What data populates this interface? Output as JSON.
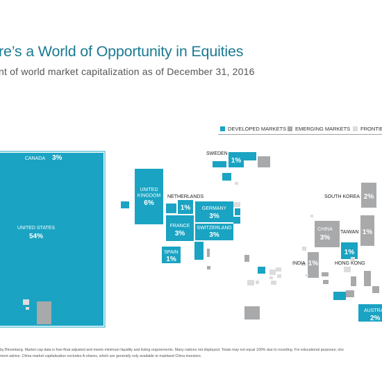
{
  "header": {
    "title": "re’s a World of Opportunity in Equities",
    "subtitle": "nt of world market capitalization as of December 31, 2016"
  },
  "legend": [
    {
      "label": "DEVELOPED MARKETS",
      "color": "#1aa3c2"
    },
    {
      "label": "EMERGING MARKETS",
      "color": "#a8a9ab"
    },
    {
      "label": "FRONTIER",
      "color": "#dcdcdd"
    }
  ],
  "chart_data": {
    "type": "treemap-map",
    "unit": "% of world market capitalization",
    "as_of": "December 31, 2016",
    "countries": [
      {
        "name": "CANADA",
        "value": 3,
        "label": "3%",
        "group": "developed"
      },
      {
        "name": "UNITED STATES",
        "value": 54,
        "label": "54%",
        "group": "developed"
      },
      {
        "name": "UNITED KINGDOM",
        "value": 6,
        "label": "6%",
        "group": "developed"
      },
      {
        "name": "NETHERLANDS",
        "value": 1,
        "label": "1%",
        "group": "developed"
      },
      {
        "name": "GERMANY",
        "value": 3,
        "label": "3%",
        "group": "developed"
      },
      {
        "name": "FRANCE",
        "value": 3,
        "label": "3%",
        "group": "developed"
      },
      {
        "name": "SWITZERLAND",
        "value": 3,
        "label": "3%",
        "group": "developed"
      },
      {
        "name": "SPAIN",
        "value": 1,
        "label": "1%",
        "group": "developed"
      },
      {
        "name": "SWEDEN",
        "value": 1,
        "label": "1%",
        "group": "developed"
      },
      {
        "name": "SOUTH KOREA",
        "value": 2,
        "label": "2%",
        "group": "emerging"
      },
      {
        "name": "CHINA",
        "value": 3,
        "label": "3%",
        "group": "emerging"
      },
      {
        "name": "TAIWAN",
        "value": 1,
        "label": "1%",
        "group": "emerging"
      },
      {
        "name": "INDIA",
        "value": 1,
        "label": "1%",
        "group": "emerging"
      },
      {
        "name": "HONG KONG",
        "value": 1,
        "label": "1%",
        "group": "developed"
      },
      {
        "name": "AUSTRA",
        "value": 2,
        "label": "2%",
        "group": "developed"
      }
    ]
  },
  "footnote": {
    "line1": "by Bloomberg. Market cap data is free-float adjusted and meets minimum liquidity and listing requirements. Many nations not displayed. Totals may not equal 100% due to rounding. For educational purposes; sho",
    "line2": "ment advice. China market capitalization excludes A-shares, which are generally only available to mainland China investors."
  }
}
